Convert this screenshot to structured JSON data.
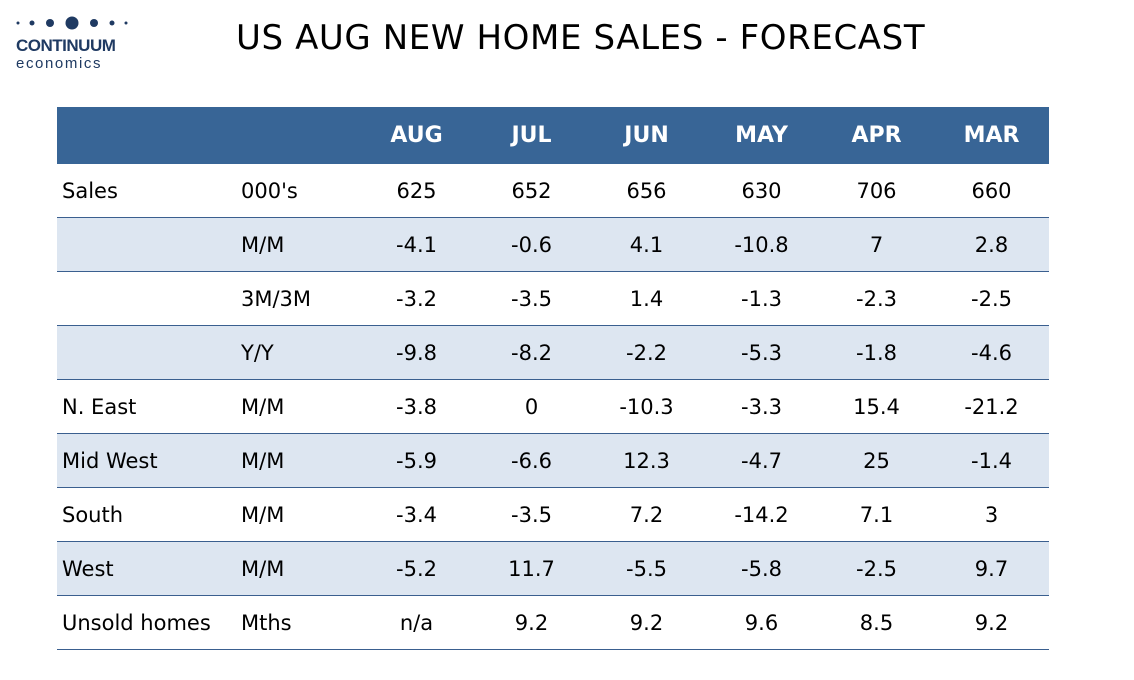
{
  "logo": {
    "name": "CONTINUUM",
    "sub": "economics",
    "color": "#1f3a62"
  },
  "title": "US AUG NEW HOME SALES - FORECAST",
  "table": {
    "header_color": "#386596",
    "shade_color": "#dde6f1",
    "headers": [
      "",
      "",
      "AUG",
      "JUL",
      "JUN",
      "MAY",
      "APR",
      "MAR"
    ],
    "rows": [
      {
        "label": "Sales",
        "unit": "000's",
        "values": [
          "625",
          "652",
          "656",
          "630",
          "706",
          "660"
        ],
        "shaded": false
      },
      {
        "label": "",
        "unit": "M/M",
        "values": [
          "-4.1",
          "-0.6",
          "4.1",
          "-10.8",
          "7",
          "2.8"
        ],
        "shaded": true
      },
      {
        "label": "",
        "unit": "3M/3M",
        "values": [
          "-3.2",
          "-3.5",
          "1.4",
          "-1.3",
          "-2.3",
          "-2.5"
        ],
        "shaded": false
      },
      {
        "label": "",
        "unit": "Y/Y",
        "values": [
          "-9.8",
          "-8.2",
          "-2.2",
          "-5.3",
          "-1.8",
          "-4.6"
        ],
        "shaded": true
      },
      {
        "label": "N. East",
        "unit": "M/M",
        "values": [
          "-3.8",
          "0",
          "-10.3",
          "-3.3",
          "15.4",
          "-21.2"
        ],
        "shaded": false
      },
      {
        "label": "Mid West",
        "unit": "M/M",
        "values": [
          "-5.9",
          "-6.6",
          "12.3",
          "-4.7",
          "25",
          "-1.4"
        ],
        "shaded": true
      },
      {
        "label": "South",
        "unit": "M/M",
        "values": [
          "-3.4",
          "-3.5",
          "7.2",
          "-14.2",
          "7.1",
          "3"
        ],
        "shaded": false
      },
      {
        "label": "West",
        "unit": "M/M",
        "values": [
          "-5.2",
          "11.7",
          "-5.5",
          "-5.8",
          "-2.5",
          "9.7"
        ],
        "shaded": true
      },
      {
        "label": "Unsold homes",
        "unit": "Mths",
        "values": [
          "n/a",
          "9.2",
          "9.2",
          "9.6",
          "8.5",
          "9.2"
        ],
        "shaded": false
      }
    ]
  }
}
